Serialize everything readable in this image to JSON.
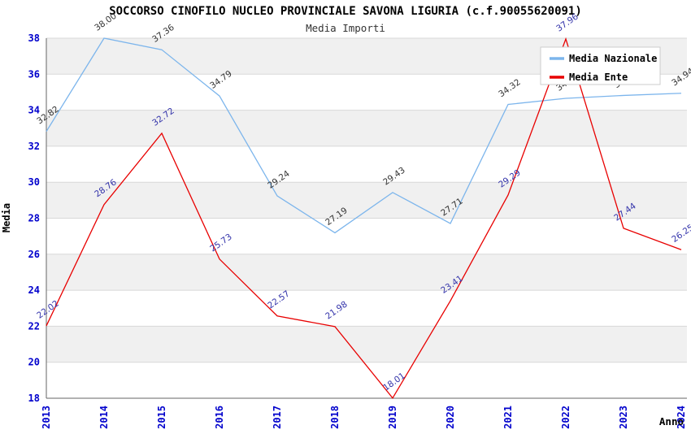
{
  "page": {
    "title": "SOCCORSO CINOFILO NUCLEO PROVINCIALE SAVONA LIGURIA (c.f.90055620091)",
    "subtitle": "Media Importi"
  },
  "colors": {
    "nazionale_line": "#7cb5ec",
    "ente_line": "#e80000",
    "tick_label": "#0000cc",
    "nazionale_value_label": "#333333",
    "ente_value_label": "#3333aa",
    "band": "#f0f0f0",
    "gridline": "#d8d8d8",
    "axis": "#666666",
    "legend_border": "#cccccc",
    "legend_bg": "#ffffff",
    "axis_title": "#000000"
  },
  "legend": {
    "items": [
      {
        "label": "Media Nazionale",
        "color": "#7cb5ec"
      },
      {
        "label": "Media Ente",
        "color": "#e80000"
      }
    ]
  },
  "chart_data": {
    "type": "line",
    "title": "SOCCORSO CINOFILO NUCLEO PROVINCIALE SAVONA LIGURIA (c.f.90055620091)",
    "subtitle": "Media Importi",
    "xlabel": "Anno",
    "ylabel": "Media",
    "ylim": [
      18,
      38
    ],
    "ytick_step": 2,
    "yticks": [
      18,
      20,
      22,
      24,
      26,
      28,
      30,
      32,
      34,
      36,
      38
    ],
    "grid": true,
    "alternating_bands": true,
    "legend_position": "top-right",
    "categories": [
      "2013",
      "2014",
      "2015",
      "2016",
      "2017",
      "2018",
      "2019",
      "2020",
      "2021",
      "2022",
      "2023",
      "2024"
    ],
    "series": [
      {
        "name": "Media Nazionale",
        "color": "#7cb5ec",
        "label_color": "#333333",
        "values": [
          32.82,
          38.0,
          37.36,
          34.79,
          29.24,
          27.19,
          29.43,
          27.71,
          34.32,
          34.66,
          34.82,
          34.94
        ],
        "labels": [
          "32.82",
          "38.00",
          "37.36",
          "34.79",
          "29.24",
          "27.19",
          "29.43",
          "27.71",
          "34.32",
          "34.66",
          "34.82",
          "34.94"
        ]
      },
      {
        "name": "Media Ente",
        "color": "#e80000",
        "label_color": "#3333aa",
        "values": [
          22.02,
          28.76,
          32.72,
          25.73,
          22.57,
          21.98,
          18.01,
          23.41,
          29.29,
          37.96,
          27.44,
          26.25
        ],
        "labels": [
          "22.02",
          "28.76",
          "32.72",
          "25.73",
          "22.57",
          "21.98",
          "18.01",
          "23.41",
          "29.29",
          "37.96",
          "27.44",
          "26.25"
        ]
      }
    ]
  }
}
